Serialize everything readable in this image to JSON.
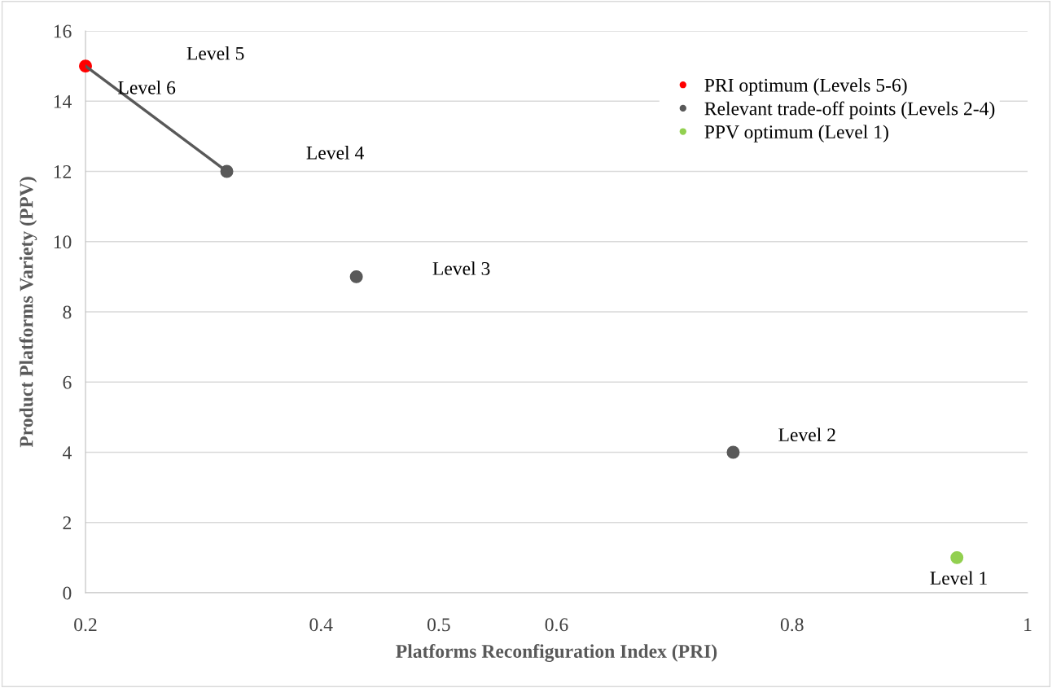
{
  "chart_data": {
    "type": "scatter",
    "xlabel": "Platforms Reconfiguration Index (PRI)",
    "ylabel": "Product Platforms Variety (PPV)",
    "xlim": [
      0.2,
      1
    ],
    "xticks": [
      0.2,
      0.4,
      0.5,
      0.6,
      0.8,
      1
    ],
    "ylim": [
      0,
      16
    ],
    "yticks": [
      0,
      2,
      4,
      6,
      8,
      10,
      12,
      14,
      16
    ],
    "grid": "y",
    "legend": "top right",
    "marker": "circle",
    "series": [
      {
        "type": "line",
        "color": "#595959",
        "x": [
          0.2,
          0.32
        ],
        "values": [
          15,
          12
        ],
        "marker": "none"
      },
      {
        "name": "PRI optimum (Levels 5-6)",
        "color": "#ff0000",
        "x": [
          0.2
        ],
        "values": [
          15
        ]
      },
      {
        "name": "Relevant trade-off points (Levels 2-4)",
        "color": "#595959",
        "x": [
          0.32,
          0.43,
          0.75
        ],
        "values": [
          12,
          9,
          4
        ]
      },
      {
        "name": "PPV optimum (Level 1)",
        "color": "#92d050",
        "x": [
          0.94
        ],
        "values": [
          1
        ]
      }
    ],
    "annotations": [
      "Level 5",
      "Level 6",
      "Level 4",
      "Level 3",
      "Level 2",
      "Level 1"
    ]
  }
}
